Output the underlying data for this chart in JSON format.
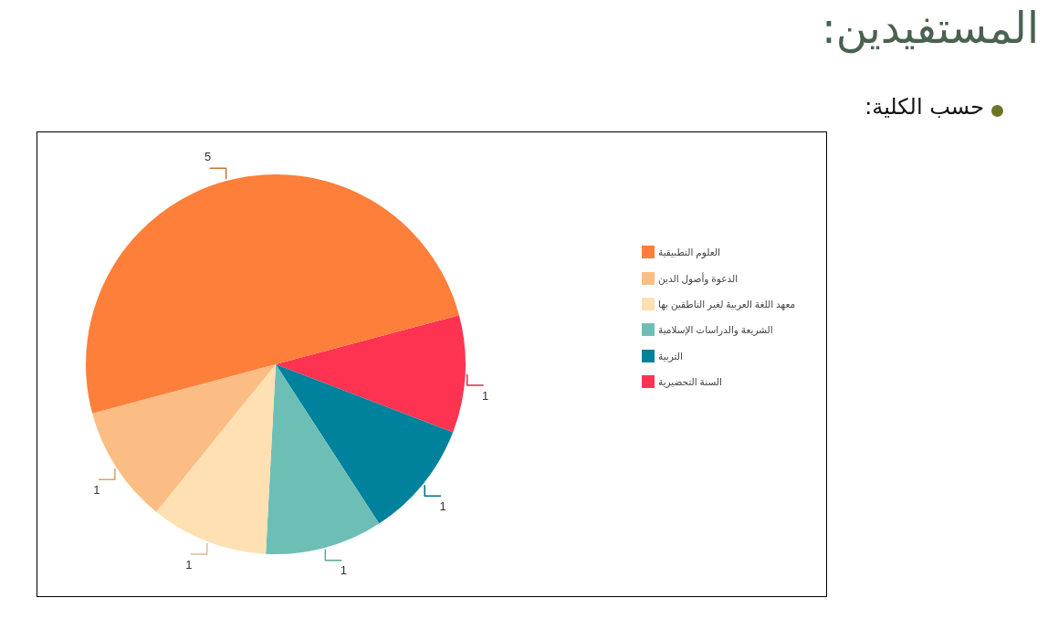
{
  "chart_data": {
    "type": "pie",
    "title": "المستفيدين:",
    "subtitle": "حسب الكلية:",
    "categories": [
      "العلوم التطبيقية",
      "الدعوة وأصول الدين",
      "معهد اللغة العربية لغير الناطقين بها",
      "الشريعة والدراسات الإسلامية",
      "التربية",
      "السنة التحضيرية"
    ],
    "values": [
      5,
      1,
      1,
      1,
      1,
      1
    ],
    "colors": [
      "#fd7f3a",
      "#fcbd84",
      "#fee0b3",
      "#6dbfb6",
      "#00819c",
      "#fe3352"
    ],
    "data_labels": true,
    "legend": "right"
  }
}
